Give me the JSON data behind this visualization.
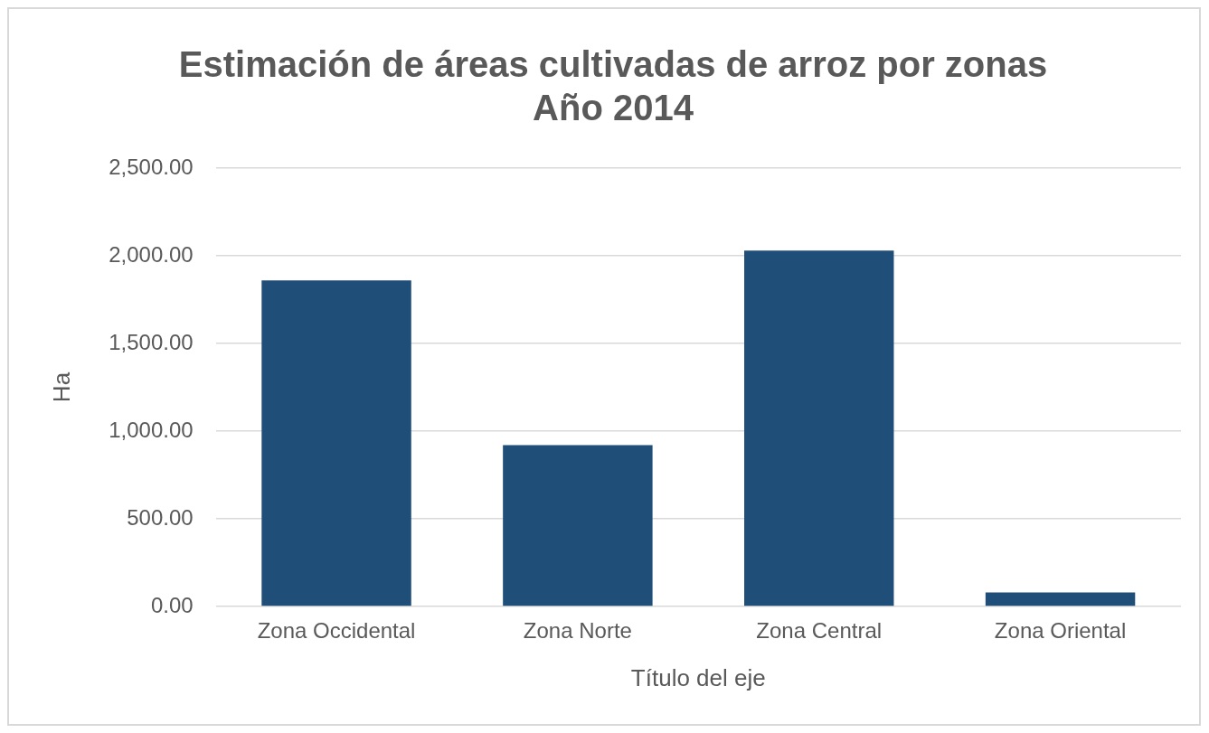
{
  "chart_data": {
    "type": "bar",
    "title": [
      "Estimación de áreas cultivadas de arroz por zonas",
      "Año 2014"
    ],
    "xlabel": "Título del eje",
    "ylabel": "Ha",
    "categories": [
      "Zona Occidental",
      "Zona Norte",
      "Zona Central",
      "Zona Oriental"
    ],
    "values": [
      1860,
      920,
      2030,
      80
    ],
    "color": "#1f4e79",
    "ylim": [
      0,
      2500
    ],
    "yticks": [
      {
        "value": 0,
        "label": "0.00"
      },
      {
        "value": 500,
        "label": "500.00"
      },
      {
        "value": 1000,
        "label": "1,000.00"
      },
      {
        "value": 1500,
        "label": "1,500.00"
      },
      {
        "value": 2000,
        "label": "2,000.00"
      },
      {
        "value": 2500,
        "label": "2,500.00"
      }
    ],
    "grid": "y",
    "legend": false
  }
}
